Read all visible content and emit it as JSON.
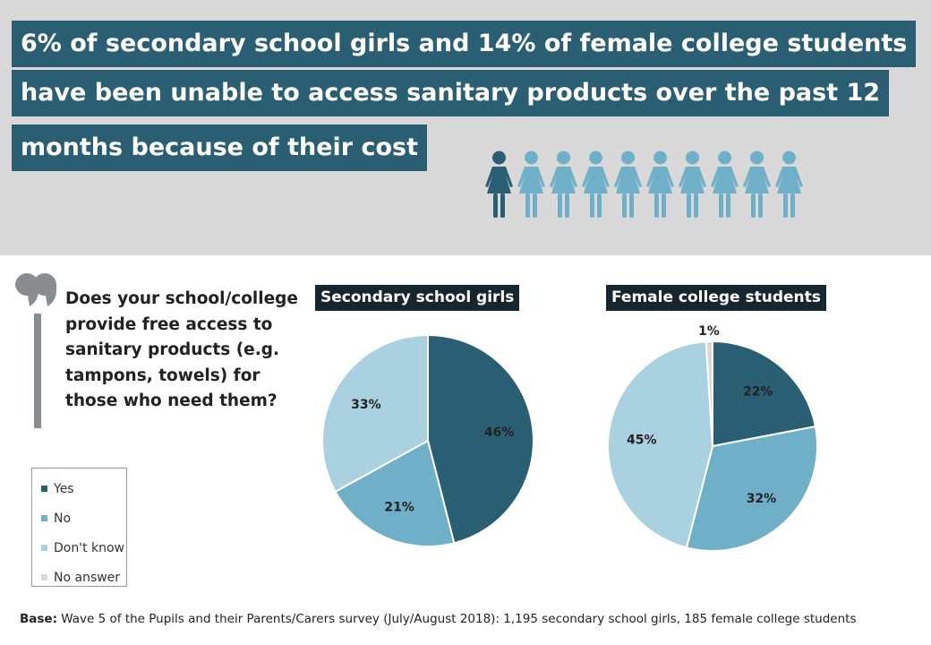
{
  "headline": {
    "line1": "6% of secondary school girls and 14% of female college students",
    "line2": "have been unable to access sanitary products over the past 12",
    "line3": "months because of their cost"
  },
  "pictogram": {
    "icon": "female-figure-icon",
    "total": 10,
    "highlighted": 1,
    "highlight_color": "#2a5f73",
    "base_color": "#6fb0c8"
  },
  "question": "Does your school/college provide free access to sanitary products (e.g. tampons, towels) for those who need them?",
  "legend": [
    {
      "label": "Yes",
      "color": "#2a5f73"
    },
    {
      "label": "No",
      "color": "#6fb0c8"
    },
    {
      "label": "Don't know",
      "color": "#a9d1e0"
    },
    {
      "label": "No answer",
      "color": "#d9d9d9"
    }
  ],
  "chart_data": [
    {
      "type": "pie",
      "title": "Secondary school girls",
      "categories": [
        "Yes",
        "No",
        "Don't know"
      ],
      "values": [
        46,
        21,
        33
      ],
      "labels": [
        "46%",
        "21%",
        "33%"
      ]
    },
    {
      "type": "pie",
      "title": "Female college students",
      "categories": [
        "Yes",
        "No",
        "Don't know",
        "No answer"
      ],
      "values": [
        22,
        32,
        45,
        1
      ],
      "labels": [
        "22%",
        "32%",
        "45%",
        "1%"
      ]
    }
  ],
  "footer": {
    "base_label": "Base:",
    "base_text": " Wave 5 of the Pupils and their Parents/Carers survey (July/August 2018): 1,195 secondary school girls, 185 female college students"
  }
}
